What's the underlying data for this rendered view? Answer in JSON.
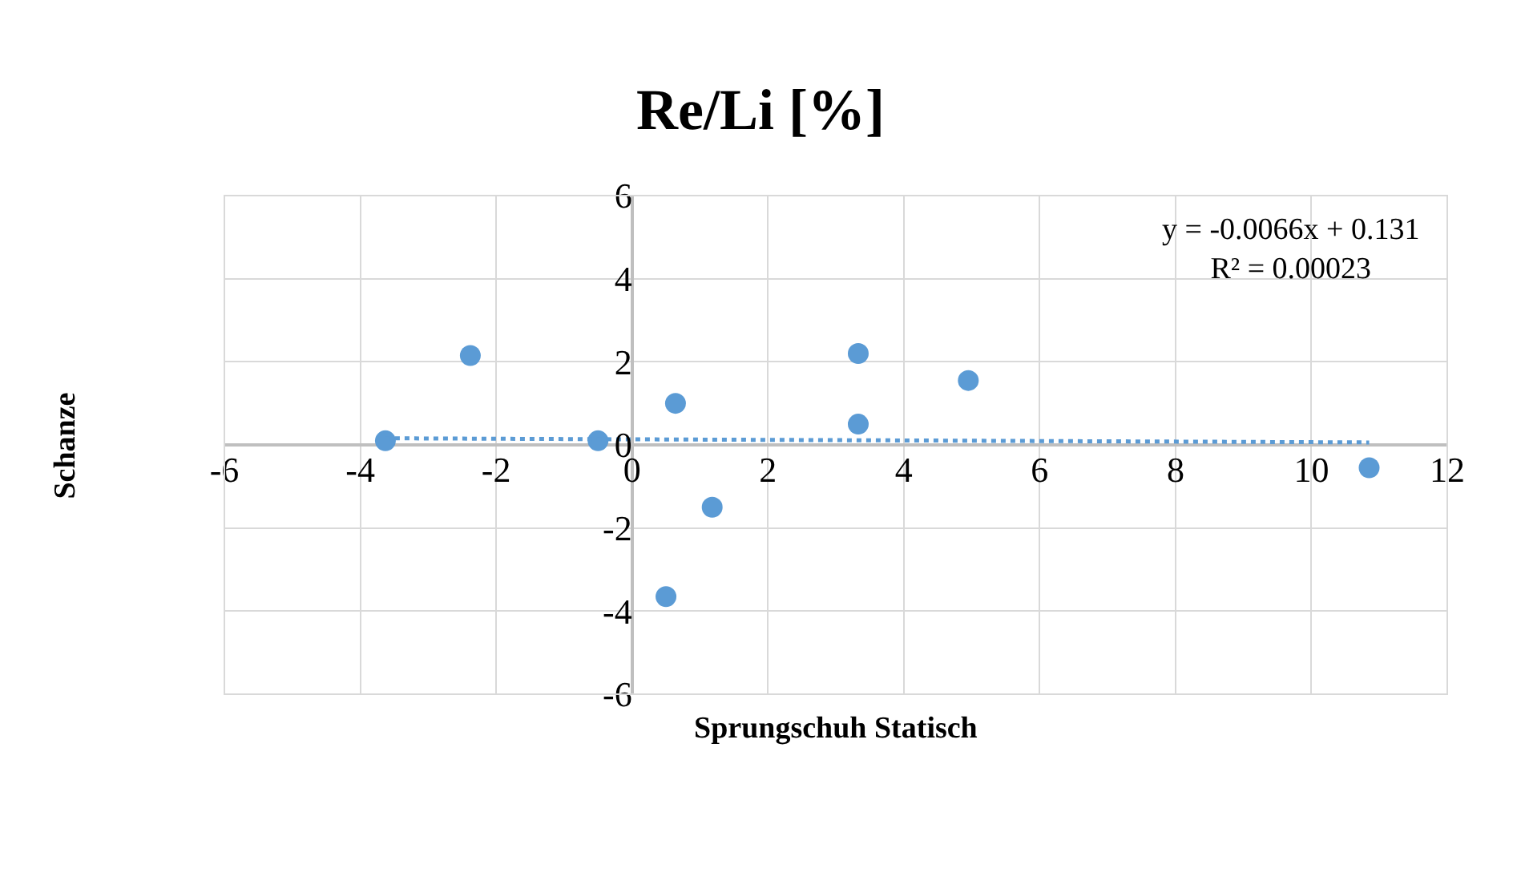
{
  "chart_data": {
    "type": "scatter",
    "title": "Re/Li [%]",
    "xlabel": "Sprungschuh Statisch",
    "ylabel": "Schanze",
    "xlim": [
      -6,
      12
    ],
    "xticks": [
      -6,
      -4,
      -2,
      0,
      2,
      4,
      6,
      8,
      10,
      12
    ],
    "ylim": [
      -6,
      6
    ],
    "yticks": [
      -6,
      -4,
      -2,
      0,
      2,
      4,
      6
    ],
    "grid": true,
    "marker": "circle",
    "annotations": [
      "y = -0.0066x + 0.131",
      "R² = 0.00023"
    ],
    "series": [
      {
        "color": "#5b9bd5",
        "x": [
          -3.63,
          -2.38,
          -0.5,
          0.64,
          1.18,
          0.5,
          3.33,
          3.33,
          4.95,
          10.85
        ],
        "values": [
          0.1,
          2.15,
          0.1,
          1.0,
          -1.5,
          -3.65,
          2.2,
          0.5,
          1.55,
          -0.55
        ]
      },
      {
        "type": "line",
        "color": "#5b9bd5",
        "line_style": "dotted",
        "marker": "none",
        "x": [
          -3.63,
          10.85
        ],
        "values": [
          0.16,
          0.06
        ]
      }
    ]
  }
}
